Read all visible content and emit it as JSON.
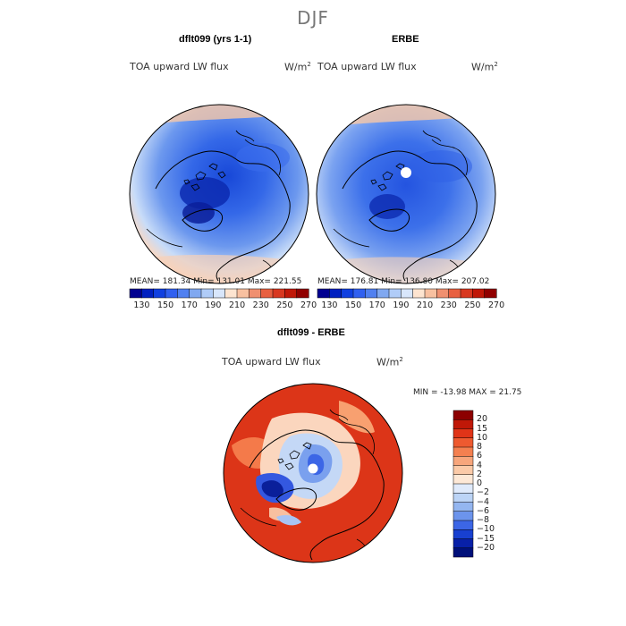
{
  "season": "DJF",
  "top_maps": [
    {
      "title": "dflt099 (yrs 1-1)",
      "variable": "TOA upward LW flux",
      "units": "W/m",
      "units_sup": "2",
      "stats": "MEAN= 181.34   Min= 131.01   Max= 221.55"
    },
    {
      "title": "ERBE",
      "variable": "TOA upward LW flux",
      "units": "W/m",
      "units_sup": "2",
      "stats": "MEAN= 176.81   Min= 136.80   Max= 207.02"
    }
  ],
  "abs_colorbar": {
    "colors": [
      "#000090",
      "#0020c0",
      "#1040e0",
      "#3060f0",
      "#5080f0",
      "#80a8f0",
      "#b0ccf8",
      "#d8e6fb",
      "#fde4d0",
      "#f8c0a0",
      "#f09070",
      "#e86040",
      "#d83820",
      "#c01808",
      "#900000"
    ],
    "tick_labels": [
      "130",
      "150",
      "170",
      "190",
      "210",
      "230",
      "250",
      "270"
    ]
  },
  "diff_map": {
    "title": "dflt099 - ERBE",
    "variable": "TOA upward LW flux",
    "units": "W/m",
    "units_sup": "2",
    "stats": "MIN = -13.98  MAX =  21.75"
  },
  "diff_colorbar": {
    "levels_top_to_bottom": [
      {
        "label": "20",
        "color": "#8c0000"
      },
      {
        "label": "15",
        "color": "#c01808"
      },
      {
        "label": "10",
        "color": "#e03418"
      },
      {
        "label": "8",
        "color": "#ee5a30"
      },
      {
        "label": "6",
        "color": "#f48050"
      },
      {
        "label": "4",
        "color": "#f7a67c"
      },
      {
        "label": "2",
        "color": "#fbcaa8"
      },
      {
        "label": "0",
        "color": "#fde8d6"
      },
      {
        "label": "−2",
        "color": "#dfeafb"
      },
      {
        "label": "−4",
        "color": "#bcd4f6"
      },
      {
        "label": "−6",
        "color": "#94b6f0"
      },
      {
        "label": "−8",
        "color": "#6c94ec"
      },
      {
        "label": "−10",
        "color": "#3c66e6"
      },
      {
        "label": "−15",
        "color": "#1840d0"
      },
      {
        "label": "−20",
        "color": "#0820a8"
      }
    ],
    "bottom_color": "#00107a"
  }
}
